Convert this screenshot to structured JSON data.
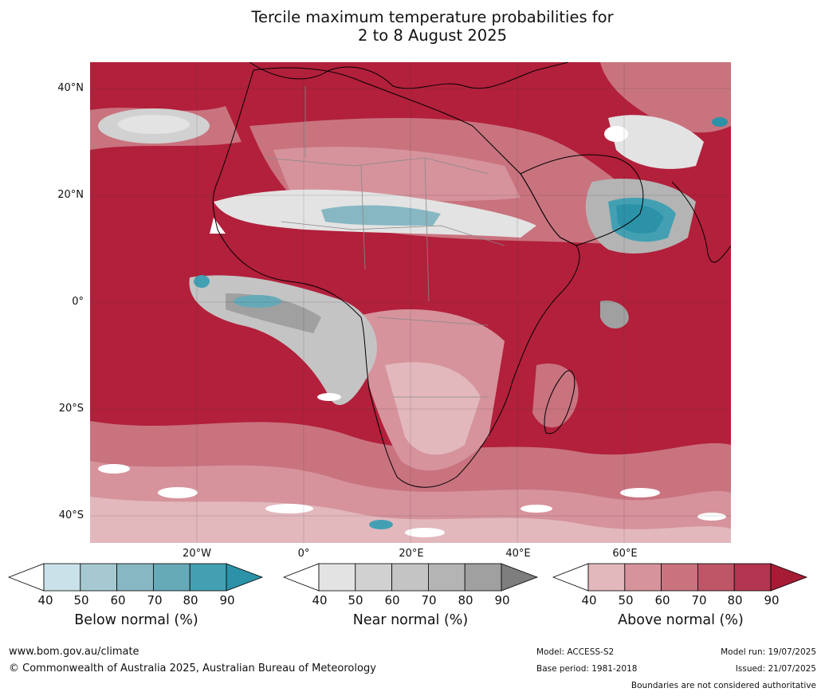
{
  "title_line1": "Tercile maximum temperature probabilities for",
  "title_line2": "2 to 8 August 2025",
  "map": {
    "lat_labels": [
      "40°N",
      "20°N",
      "0°",
      "20°S",
      "40°S"
    ],
    "lon_labels": [
      "20°W",
      "0°",
      "20°E",
      "40°E",
      "60°E"
    ],
    "ocean_color": "#b2203b",
    "coastline_color": "#000000",
    "border_color": "#888888"
  },
  "legends": [
    {
      "title": "Below normal (%)",
      "ticks": [
        "40",
        "50",
        "60",
        "70",
        "80",
        "90"
      ],
      "colors": [
        "#ffffff",
        "#c9e1e8",
        "#a6c9d1",
        "#87b7c3",
        "#66aab8",
        "#43a0b3",
        "#2b92a8"
      ]
    },
    {
      "title": "Near normal (%)",
      "ticks": [
        "40",
        "50",
        "60",
        "70",
        "80",
        "90"
      ],
      "colors": [
        "#ffffff",
        "#e3e3e3",
        "#d1d1d1",
        "#c4c4c4",
        "#b4b4b4",
        "#a0a0a0",
        "#7d7d7d"
      ]
    },
    {
      "title": "Above normal (%)",
      "ticks": [
        "40",
        "50",
        "60",
        "70",
        "80",
        "90"
      ],
      "colors": [
        "#ffffff",
        "#e2b8bd",
        "#d6939c",
        "#c9737f",
        "#be5668",
        "#b33550",
        "#a61c35"
      ]
    }
  ],
  "footer": {
    "website": "www.bom.gov.au/climate",
    "copyright": "© Commonwealth of Australia 2025, Australian Bureau of Meteorology",
    "model": "Model: ACCESS-S2",
    "base_period": "Base period: 1981-2018",
    "model_run": "Model run: 19/07/2025",
    "issued": "Issued: 21/07/2025",
    "disclaimer": "Boundaries are not considered authoritative"
  }
}
